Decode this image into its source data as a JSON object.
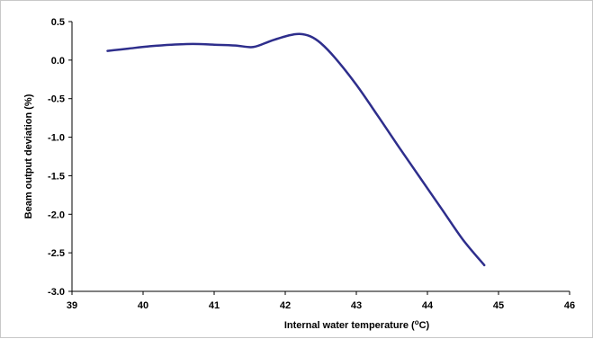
{
  "chart_data": {
    "type": "line",
    "title": "",
    "xlabel": "Internal water temperature (",
    "xlabel_unit_sup": "o",
    "xlabel_unit_tail": "C)",
    "ylabel": "Beam output deviation (%)",
    "xlim": [
      39,
      46
    ],
    "ylim": [
      -3.0,
      0.5
    ],
    "x_ticks": [
      39,
      40,
      41,
      42,
      43,
      44,
      45,
      46
    ],
    "y_ticks": [
      0.5,
      0.0,
      -0.5,
      -1.0,
      -1.5,
      -2.0,
      -2.5,
      -3.0
    ],
    "y_tick_labels": [
      "0.5",
      "0.0",
      "-0.5",
      "-1.0",
      "-1.5",
      "-2.0",
      "-2.5",
      "-3.0"
    ],
    "grid": false,
    "line_color": "#2e2e8c",
    "series": [
      {
        "x": [
          39.5,
          39.8,
          40.1,
          40.4,
          40.7,
          41.0,
          41.3,
          41.55,
          41.8,
          42.05,
          42.2,
          42.35,
          42.5,
          42.7,
          43.0,
          43.3,
          43.6,
          43.9,
          44.2,
          44.5,
          44.8
        ],
        "y": [
          0.12,
          0.15,
          0.18,
          0.2,
          0.21,
          0.2,
          0.19,
          0.17,
          0.25,
          0.32,
          0.34,
          0.31,
          0.22,
          0.03,
          -0.32,
          -0.72,
          -1.13,
          -1.53,
          -1.93,
          -2.33,
          -2.66
        ]
      }
    ]
  }
}
